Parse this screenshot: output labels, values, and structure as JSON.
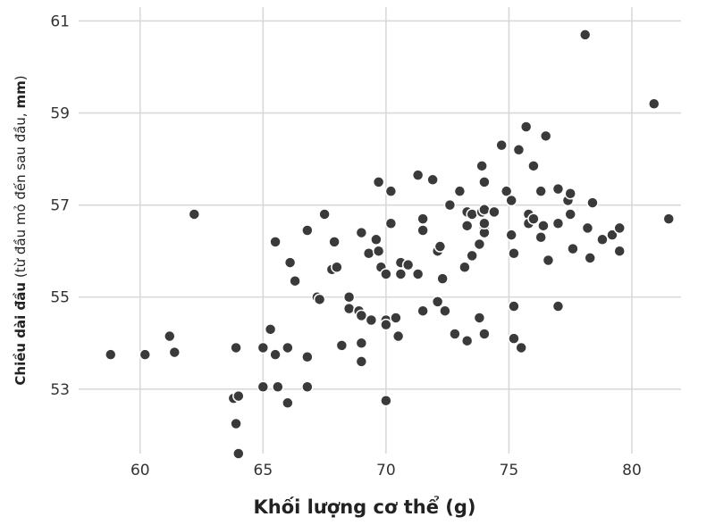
{
  "chart_data": {
    "type": "scatter",
    "xlabel": "Khối lượng cơ thể (g)",
    "ylabel": {
      "main": "Chiều dài đầu",
      "detail_pre": " (từ đầu mỏ đến sau đầu, ",
      "unit": "mm",
      "detail_post": ")"
    },
    "xlim": [
      57.5,
      82
    ],
    "ylim": [
      51.6,
      61.3
    ],
    "xticks": [
      60,
      65,
      70,
      75,
      80
    ],
    "yticks": [
      53,
      55,
      57,
      59,
      61
    ],
    "xtick_labels": [
      "60",
      "65",
      "70",
      "75",
      "80"
    ],
    "ytick_labels": [
      "53",
      "55",
      "57",
      "59",
      "61"
    ],
    "grid": true,
    "point_color": "#3a3a3a",
    "points": [
      [
        58.8,
        53.75
      ],
      [
        60.2,
        53.75
      ],
      [
        61.2,
        54.15
      ],
      [
        61.4,
        53.8
      ],
      [
        62.2,
        56.8
      ],
      [
        63.8,
        52.8
      ],
      [
        63.9,
        53.9
      ],
      [
        63.9,
        52.25
      ],
      [
        64.0,
        52.85
      ],
      [
        64.0,
        51.6
      ],
      [
        65.0,
        53.9
      ],
      [
        65.0,
        53.05
      ],
      [
        65.3,
        54.3
      ],
      [
        65.5,
        56.2
      ],
      [
        65.5,
        53.75
      ],
      [
        65.6,
        53.05
      ],
      [
        66.0,
        53.9
      ],
      [
        66.0,
        52.7
      ],
      [
        66.1,
        55.75
      ],
      [
        66.3,
        55.35
      ],
      [
        66.8,
        56.45
      ],
      [
        66.8,
        53.7
      ],
      [
        66.8,
        53.05
      ],
      [
        67.2,
        55.0
      ],
      [
        67.3,
        54.95
      ],
      [
        67.5,
        56.8
      ],
      [
        67.8,
        55.6
      ],
      [
        67.9,
        56.2
      ],
      [
        68.0,
        55.65
      ],
      [
        68.2,
        53.95
      ],
      [
        68.5,
        55.0
      ],
      [
        68.5,
        54.75
      ],
      [
        68.9,
        54.7
      ],
      [
        69.0,
        56.4
      ],
      [
        69.0,
        54.6
      ],
      [
        69.0,
        54.0
      ],
      [
        69.0,
        53.6
      ],
      [
        69.3,
        55.95
      ],
      [
        69.4,
        54.5
      ],
      [
        69.6,
        56.25
      ],
      [
        69.7,
        57.5
      ],
      [
        69.7,
        56.0
      ],
      [
        69.8,
        55.65
      ],
      [
        70.0,
        55.5
      ],
      [
        70.0,
        54.5
      ],
      [
        70.0,
        54.4
      ],
      [
        70.0,
        52.75
      ],
      [
        70.2,
        56.6
      ],
      [
        70.2,
        57.3
      ],
      [
        70.4,
        54.55
      ],
      [
        70.5,
        54.15
      ],
      [
        70.6,
        55.5
      ],
      [
        70.6,
        55.75
      ],
      [
        70.9,
        55.7
      ],
      [
        71.3,
        55.5
      ],
      [
        71.3,
        57.65
      ],
      [
        71.5,
        56.45
      ],
      [
        71.5,
        56.7
      ],
      [
        71.5,
        54.7
      ],
      [
        71.9,
        57.55
      ],
      [
        72.1,
        54.9
      ],
      [
        72.1,
        56.0
      ],
      [
        72.2,
        56.1
      ],
      [
        72.3,
        55.4
      ],
      [
        72.4,
        54.7
      ],
      [
        72.6,
        57.0
      ],
      [
        72.8,
        54.2
      ],
      [
        73.0,
        57.3
      ],
      [
        73.2,
        55.65
      ],
      [
        73.3,
        54.05
      ],
      [
        73.3,
        56.55
      ],
      [
        73.3,
        56.85
      ],
      [
        73.5,
        56.8
      ],
      [
        73.5,
        55.9
      ],
      [
        73.8,
        56.15
      ],
      [
        73.8,
        54.55
      ],
      [
        73.9,
        56.85
      ],
      [
        73.9,
        57.85
      ],
      [
        74.0,
        56.9
      ],
      [
        74.0,
        56.5
      ],
      [
        74.0,
        56.4
      ],
      [
        74.0,
        56.6
      ],
      [
        74.0,
        57.5
      ],
      [
        74.0,
        54.2
      ],
      [
        74.4,
        56.85
      ],
      [
        74.7,
        58.3
      ],
      [
        74.9,
        57.3
      ],
      [
        75.1,
        57.1
      ],
      [
        75.1,
        56.35
      ],
      [
        75.2,
        55.95
      ],
      [
        75.2,
        54.8
      ],
      [
        75.2,
        54.1
      ],
      [
        75.4,
        58.2
      ],
      [
        75.5,
        53.9
      ],
      [
        75.7,
        58.7
      ],
      [
        75.8,
        56.8
      ],
      [
        75.8,
        56.6
      ],
      [
        76.0,
        56.7
      ],
      [
        76.0,
        57.85
      ],
      [
        76.3,
        57.3
      ],
      [
        76.3,
        56.3
      ],
      [
        76.4,
        56.55
      ],
      [
        76.5,
        58.5
      ],
      [
        76.6,
        55.8
      ],
      [
        77.0,
        57.35
      ],
      [
        77.0,
        56.6
      ],
      [
        77.0,
        54.8
      ],
      [
        77.4,
        57.1
      ],
      [
        77.5,
        57.25
      ],
      [
        77.5,
        56.8
      ],
      [
        77.6,
        56.05
      ],
      [
        78.1,
        60.7
      ],
      [
        78.2,
        56.5
      ],
      [
        78.3,
        55.85
      ],
      [
        78.4,
        57.05
      ],
      [
        78.8,
        56.25
      ],
      [
        79.2,
        56.35
      ],
      [
        79.5,
        56.5
      ],
      [
        79.5,
        56.0
      ],
      [
        80.9,
        59.2
      ],
      [
        81.5,
        56.7
      ]
    ]
  }
}
